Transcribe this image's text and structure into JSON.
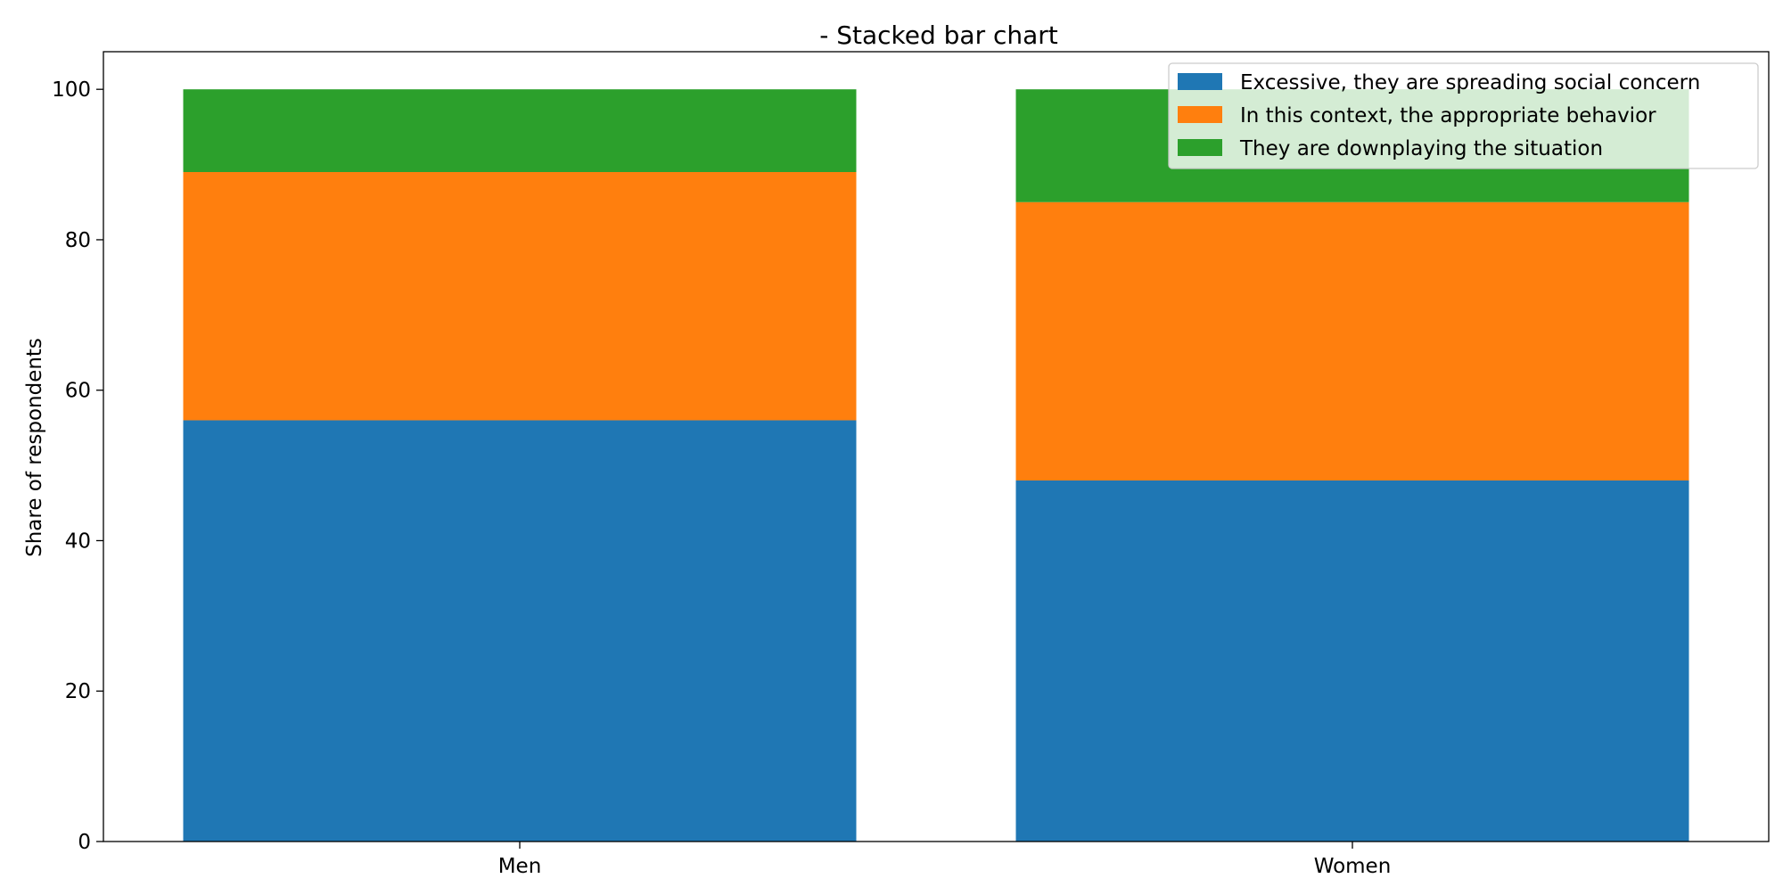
{
  "chart_data": {
    "type": "bar",
    "stacked": true,
    "title": "- Stacked bar chart",
    "xlabel": "",
    "ylabel": "Share of respondents",
    "categories": [
      "Men",
      "Women"
    ],
    "series": [
      {
        "name": "Excessive, they are spreading social concern",
        "values": [
          56,
          48
        ],
        "color": "#1f77b4"
      },
      {
        "name": "In this context, the appropriate behavior",
        "values": [
          33,
          37
        ],
        "color": "#ff7f0e"
      },
      {
        "name": "They are downplaying the situation",
        "values": [
          11,
          15
        ],
        "color": "#2ca02c"
      }
    ],
    "ylim": [
      0,
      105
    ],
    "yticks": [
      0,
      20,
      40,
      60,
      80,
      100
    ],
    "grid": false,
    "legend_position": "top-right"
  }
}
